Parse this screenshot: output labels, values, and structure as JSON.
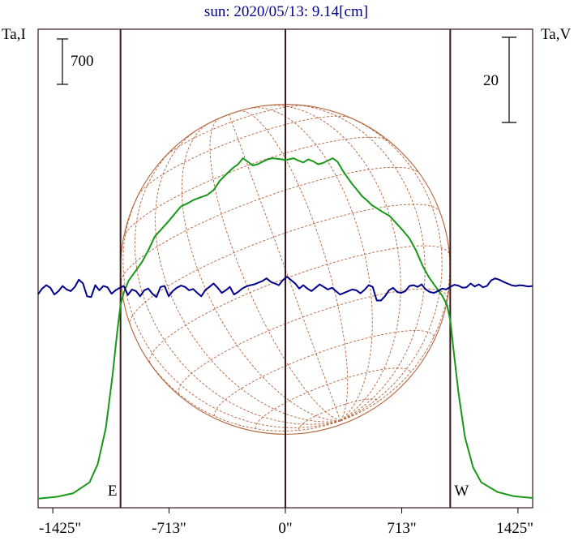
{
  "chart_data": {
    "type": "line",
    "title": "sun: 2020/05/13: 9.14[cm]",
    "left_axis_label": "Ta,I",
    "right_axis_label": "Ta,V",
    "left_scale_bar_label": "700",
    "right_scale_bar_label": "20",
    "left_scale_bar_value": 700,
    "right_scale_bar_value": 20,
    "xlim": [
      -1515,
      1515
    ],
    "x_ticks": [
      -1425,
      -713,
      0,
      713,
      1425
    ],
    "x_tick_labels": [
      "-1425\"",
      "-713\"",
      "0\"",
      "713\"",
      "1425\""
    ],
    "limb_markers": [
      {
        "x": -1010,
        "label": "E"
      },
      {
        "x": 1010,
        "label": "W"
      }
    ],
    "center_line_x": 0,
    "colors": {
      "intensity": "#189818",
      "polarization": "#00008c",
      "sun_grid": "#b4643c",
      "frame": "#3a1a1a",
      "title": "#00008c"
    },
    "series": [
      {
        "name": "Ta,I",
        "x": [
          -1515,
          -1400,
          -1300,
          -1200,
          -1150,
          -1100,
          -1060,
          -1030,
          -1010,
          -990,
          -960,
          -920,
          -880,
          -840,
          -800,
          -760,
          -720,
          -680,
          -640,
          -600,
          -560,
          -520,
          -480,
          -440,
          -400,
          -360,
          -320,
          -290,
          -260,
          -230,
          -200,
          -170,
          -140,
          -110,
          -80,
          -50,
          -20,
          0,
          20,
          50,
          80,
          110,
          140,
          170,
          200,
          230,
          260,
          290,
          320,
          350,
          380,
          410,
          440,
          470,
          500,
          530,
          560,
          600,
          640,
          680,
          720,
          760,
          800,
          840,
          880,
          920,
          960,
          990,
          1010,
          1030,
          1060,
          1100,
          1150,
          1200,
          1300,
          1400,
          1515
        ],
        "y": [
          30,
          60,
          120,
          300,
          600,
          1200,
          2050,
          2800,
          3250,
          3450,
          3650,
          3800,
          3950,
          4150,
          4380,
          4500,
          4620,
          4750,
          4880,
          4930,
          4990,
          5030,
          5070,
          5150,
          5310,
          5420,
          5520,
          5580,
          5680,
          5620,
          5560,
          5580,
          5620,
          5660,
          5680,
          5670,
          5660,
          5650,
          5660,
          5680,
          5640,
          5610,
          5660,
          5630,
          5580,
          5600,
          5640,
          5680,
          5620,
          5480,
          5360,
          5250,
          5150,
          5050,
          4980,
          4900,
          4850,
          4780,
          4720,
          4600,
          4480,
          4350,
          4150,
          3900,
          3700,
          3550,
          3400,
          3250,
          3000,
          2500,
          1800,
          1050,
          550,
          300,
          140,
          70,
          40
        ]
      },
      {
        "name": "Ta,V",
        "x": [
          -1515,
          -1490,
          -1465,
          -1440,
          -1415,
          -1390,
          -1365,
          -1340,
          -1315,
          -1290,
          -1265,
          -1240,
          -1215,
          -1190,
          -1165,
          -1140,
          -1115,
          -1090,
          -1065,
          -1040,
          -1015,
          -990,
          -965,
          -940,
          -915,
          -890,
          -865,
          -840,
          -815,
          -790,
          -765,
          -740,
          -715,
          -690,
          -665,
          -640,
          -615,
          -590,
          -565,
          -540,
          -515,
          -490,
          -465,
          -440,
          -415,
          -390,
          -365,
          -340,
          -315,
          -290,
          -265,
          -240,
          -215,
          -190,
          -165,
          -140,
          -115,
          -90,
          -65,
          -40,
          -15,
          10,
          35,
          60,
          85,
          110,
          135,
          160,
          185,
          210,
          235,
          260,
          285,
          310,
          335,
          360,
          385,
          410,
          435,
          460,
          485,
          510,
          535,
          560,
          585,
          610,
          635,
          660,
          685,
          710,
          735,
          760,
          785,
          810,
          835,
          860,
          885,
          910,
          935,
          960,
          985,
          1010,
          1035,
          1060,
          1085,
          1110,
          1135,
          1160,
          1185,
          1210,
          1235,
          1260,
          1285,
          1310,
          1335,
          1360,
          1385,
          1410,
          1435,
          1460,
          1485,
          1515
        ],
        "y": [
          -0.5,
          0.8,
          1.6,
          1.0,
          -0.6,
          0.2,
          1.4,
          0.6,
          0.2,
          1.2,
          2.9,
          2.0,
          -1.0,
          -1.2,
          1.6,
          0.4,
          1.4,
          1.1,
          -0.4,
          0.4,
          1.0,
          1.4,
          -0.7,
          0.6,
          0.2,
          -1.0,
          0.4,
          0.8,
          -0.4,
          -1.2,
          1.2,
          1.4,
          -1.0,
          0.2,
          1.0,
          1.5,
          1.2,
          0.4,
          0.7,
          -0.2,
          -1.0,
          0.5,
          1.2,
          2.0,
          1.0,
          -0.2,
          0.4,
          1.2,
          -0.6,
          0.0,
          0.8,
          1.3,
          1.6,
          1.8,
          2.2,
          2.6,
          3.2,
          2.4,
          2.0,
          1.6,
          2.8,
          3.6,
          2.8,
          2.0,
          0.8,
          1.6,
          0.8,
          0.2,
          1.0,
          1.8,
          1.2,
          0.6,
          1.0,
          0.2,
          -0.6,
          -0.2,
          0.2,
          0.6,
          0.4,
          -0.3,
          0.5,
          1.6,
          1.2,
          -2.0,
          -2.0,
          -1.0,
          0.4,
          1.0,
          0.0,
          -0.2,
          0.2,
          1.4,
          1.6,
          1.2,
          1.8,
          0.6,
          0.0,
          -0.2,
          0.2,
          0.8,
          0.6,
          1.2,
          1.7,
          1.5,
          1.0,
          1.1,
          2.0,
          1.3,
          1.8,
          1.1,
          1.4,
          2.7,
          3.2,
          2.9,
          2.4,
          2.0,
          1.6,
          1.4,
          1.6,
          1.5,
          1.3,
          1.4
        ]
      }
    ]
  }
}
